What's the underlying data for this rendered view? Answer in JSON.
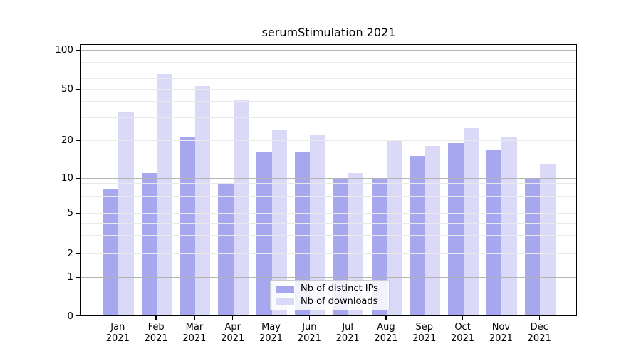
{
  "title": "serumStimulation 2021",
  "legend": [
    {
      "label": "Nb of distinct IPs",
      "color": "#a7a7f0"
    },
    {
      "label": "Nb of downloads",
      "color": "#dadaf8"
    }
  ],
  "colors": {
    "bar_dark": "#a7a7f0",
    "bar_light": "#dadaf8",
    "grid_major": "#b3b3b3",
    "grid_light": "#e9e9e9",
    "axis": "#000000"
  },
  "chart_data": {
    "type": "bar",
    "title": "serumStimulation 2021",
    "categories": [
      "Jan 2021",
      "Feb 2021",
      "Mar 2021",
      "Apr 2021",
      "May 2021",
      "Jun 2021",
      "Jul 2021",
      "Aug 2021",
      "Sep 2021",
      "Oct 2021",
      "Nov 2021",
      "Dec 2021"
    ],
    "series": [
      {
        "name": "Nb of distinct IPs",
        "color": "#a7a7f0",
        "values": [
          8,
          11,
          21,
          9,
          16,
          16,
          10,
          10,
          15,
          19,
          17,
          10
        ]
      },
      {
        "name": "Nb of downloads",
        "color": "#dadaf8",
        "values": [
          33,
          65,
          53,
          41,
          24,
          22,
          11,
          20,
          18,
          25,
          21,
          13
        ]
      }
    ],
    "xlabel": "",
    "ylabel": "",
    "yscale": "symlog",
    "ytick_labels": [
      "0",
      "1",
      "2",
      "5",
      "10",
      "20",
      "50",
      "100"
    ],
    "ytick_values": [
      0,
      1,
      2,
      5,
      10,
      20,
      50,
      100
    ],
    "ylim": [
      0,
      100
    ],
    "grid": "horizontal, major and minor, drawn above bars",
    "legend_position": "lower center"
  }
}
